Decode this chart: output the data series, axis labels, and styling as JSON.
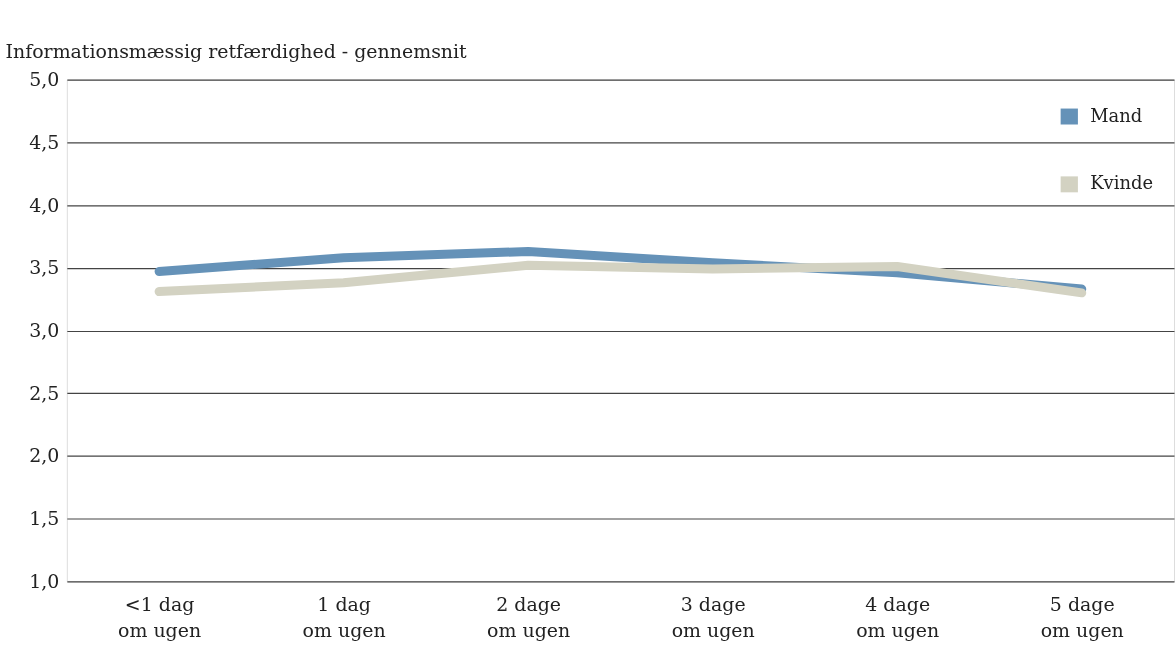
{
  "chart_data": {
    "type": "line",
    "ylabel": "Informationsmæssig retfærdighed - gennemsnit",
    "categories": [
      "<1 dag\nom ugen",
      "1 dag\nom ugen",
      "2 dage\nom ugen",
      "3 dage\nom ugen",
      "4 dage\nom ugen",
      "5 dage\nom ugen"
    ],
    "series": [
      {
        "name": "Mand",
        "color": "#6592b8",
        "values": [
          3.47,
          3.58,
          3.63,
          3.54,
          3.46,
          3.33
        ]
      },
      {
        "name": "Kvinde",
        "color": "#d3d2c2",
        "values": [
          3.31,
          3.38,
          3.52,
          3.49,
          3.51,
          3.3
        ]
      }
    ],
    "ylim": [
      1.0,
      5.0
    ],
    "yticks": [
      {
        "value": 1.0,
        "label": "1,0"
      },
      {
        "value": 1.5,
        "label": "1,5"
      },
      {
        "value": 2.0,
        "label": "2,0"
      },
      {
        "value": 2.5,
        "label": "2,5"
      },
      {
        "value": 3.0,
        "label": "3,0"
      },
      {
        "value": 3.5,
        "label": "3,5"
      },
      {
        "value": 4.0,
        "label": "4,0"
      },
      {
        "value": 4.5,
        "label": "4,5"
      },
      {
        "value": 5.0,
        "label": "5,0"
      }
    ],
    "grid": "y",
    "legend": "top right",
    "marker": "none",
    "line_style": "solid"
  }
}
